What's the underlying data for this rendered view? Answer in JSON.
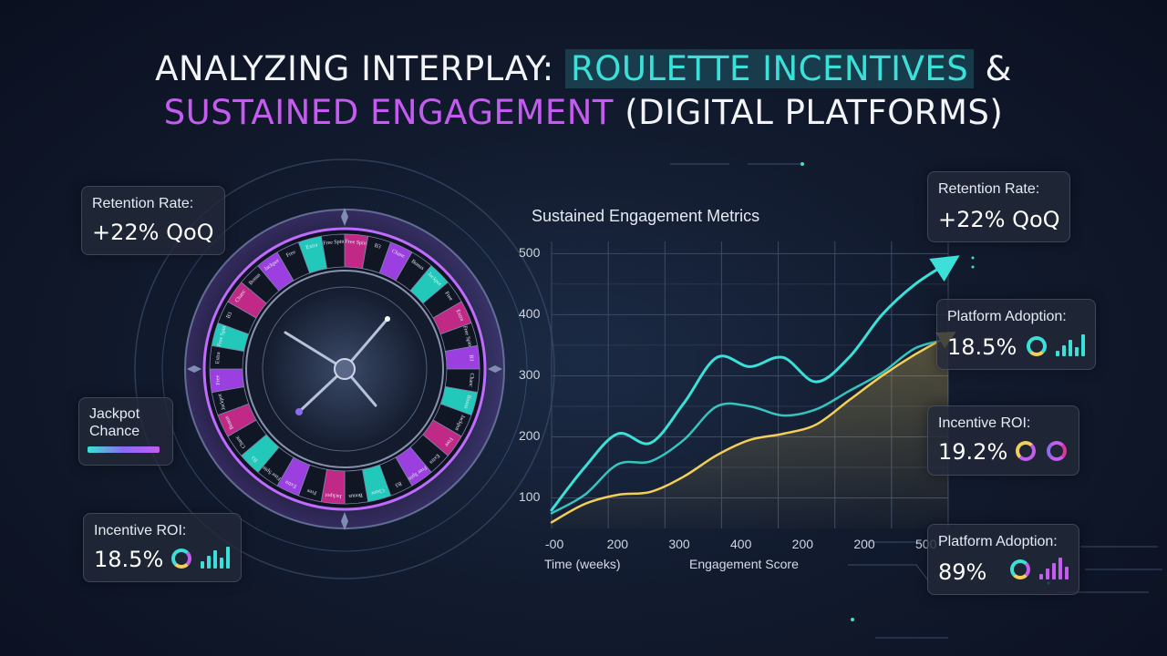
{
  "title": {
    "part1": "ANALYZING INTERPLAY: ",
    "part2": "ROULETTE INCENTIVES",
    "part3": " &",
    "part4": "SUSTAINED ENGAGEMENT",
    "part5": " (DIGITAL PLATFORMS)"
  },
  "left_cards": {
    "retention": {
      "label": "Retention Rate:",
      "value": "+22% QoQ"
    },
    "jackpot": {
      "label_line1": "Jackpot",
      "label_line2": "Chance"
    },
    "roi": {
      "label": "Incentive ROI:",
      "value": "18.5%"
    }
  },
  "right_cards": {
    "retention": {
      "label": "Retention Rate:",
      "value": "+22% QoQ"
    },
    "adoption": {
      "label": "Platform Adoption:",
      "value": "18.5%"
    },
    "roi": {
      "label": "Incentive ROI:",
      "value": "19.2%"
    },
    "adoption2": {
      "label": "Platform Adoption:",
      "value": "89%"
    }
  },
  "colors": {
    "cyan": "#3be0d8",
    "yellow": "#f3cf5a",
    "purple": "#c45cf0",
    "magenta": "#d9389a",
    "teal": "#2fd6c9"
  },
  "roulette": {
    "pocket_pattern": [
      "magenta",
      "dark",
      "purple",
      "dark",
      "teal",
      "dark",
      "magenta",
      "dark",
      "purple",
      "dark",
      "teal",
      "dark"
    ],
    "pocket_labels": [
      "Free Spin",
      "B3",
      "Chanc",
      "Bonus",
      "Jackpot",
      "Free",
      "Extra"
    ]
  },
  "chart_data": {
    "type": "line",
    "title": "Sustained Engagement Metrics",
    "xlabel": "Time (weeks)",
    "xlabel2": "Engagement Score",
    "x_tick_labels": [
      "-00",
      "200",
      "300",
      "400",
      "200",
      "200",
      "500"
    ],
    "y_ticks": [
      100,
      200,
      300,
      400,
      500
    ],
    "ylim": [
      50,
      520
    ],
    "x": [
      0,
      1,
      2,
      3,
      4,
      5,
      6,
      7,
      8,
      9,
      10,
      11,
      12
    ],
    "series": [
      {
        "color": "#3be0d8",
        "values": [
          80,
          150,
          205,
          190,
          255,
          330,
          315,
          330,
          290,
          330,
          400,
          450,
          485
        ]
      },
      {
        "color": "#3be0d8",
        "values": [
          75,
          105,
          155,
          160,
          195,
          250,
          250,
          235,
          245,
          275,
          305,
          345,
          360
        ]
      },
      {
        "color": "#f3cf5a",
        "values": [
          60,
          90,
          105,
          110,
          135,
          170,
          195,
          205,
          220,
          260,
          300,
          335,
          365
        ]
      }
    ]
  }
}
